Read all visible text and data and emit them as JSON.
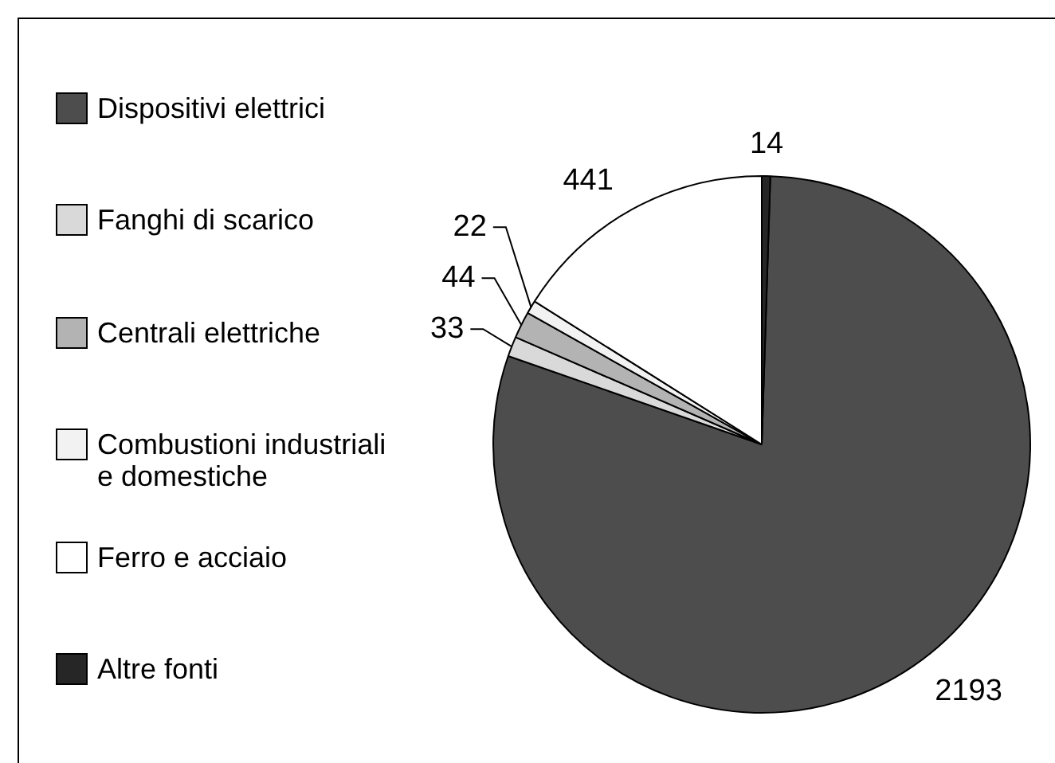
{
  "chart_data": {
    "type": "pie",
    "categories": [
      "Dispositivi elettrici",
      "Fanghi di scarico",
      "Centrali elettriche",
      "Combustioni industriali e domestiche",
      "Ferro e acciaio",
      "Altre fonti"
    ],
    "values": [
      2193,
      33,
      44,
      22,
      441,
      14
    ],
    "colors": [
      "#4d4d4d",
      "#d9d9d9",
      "#b3b3b3",
      "#f2f2f2",
      "#ffffff",
      "#262626"
    ],
    "data_labels": true,
    "legend": "left"
  }
}
